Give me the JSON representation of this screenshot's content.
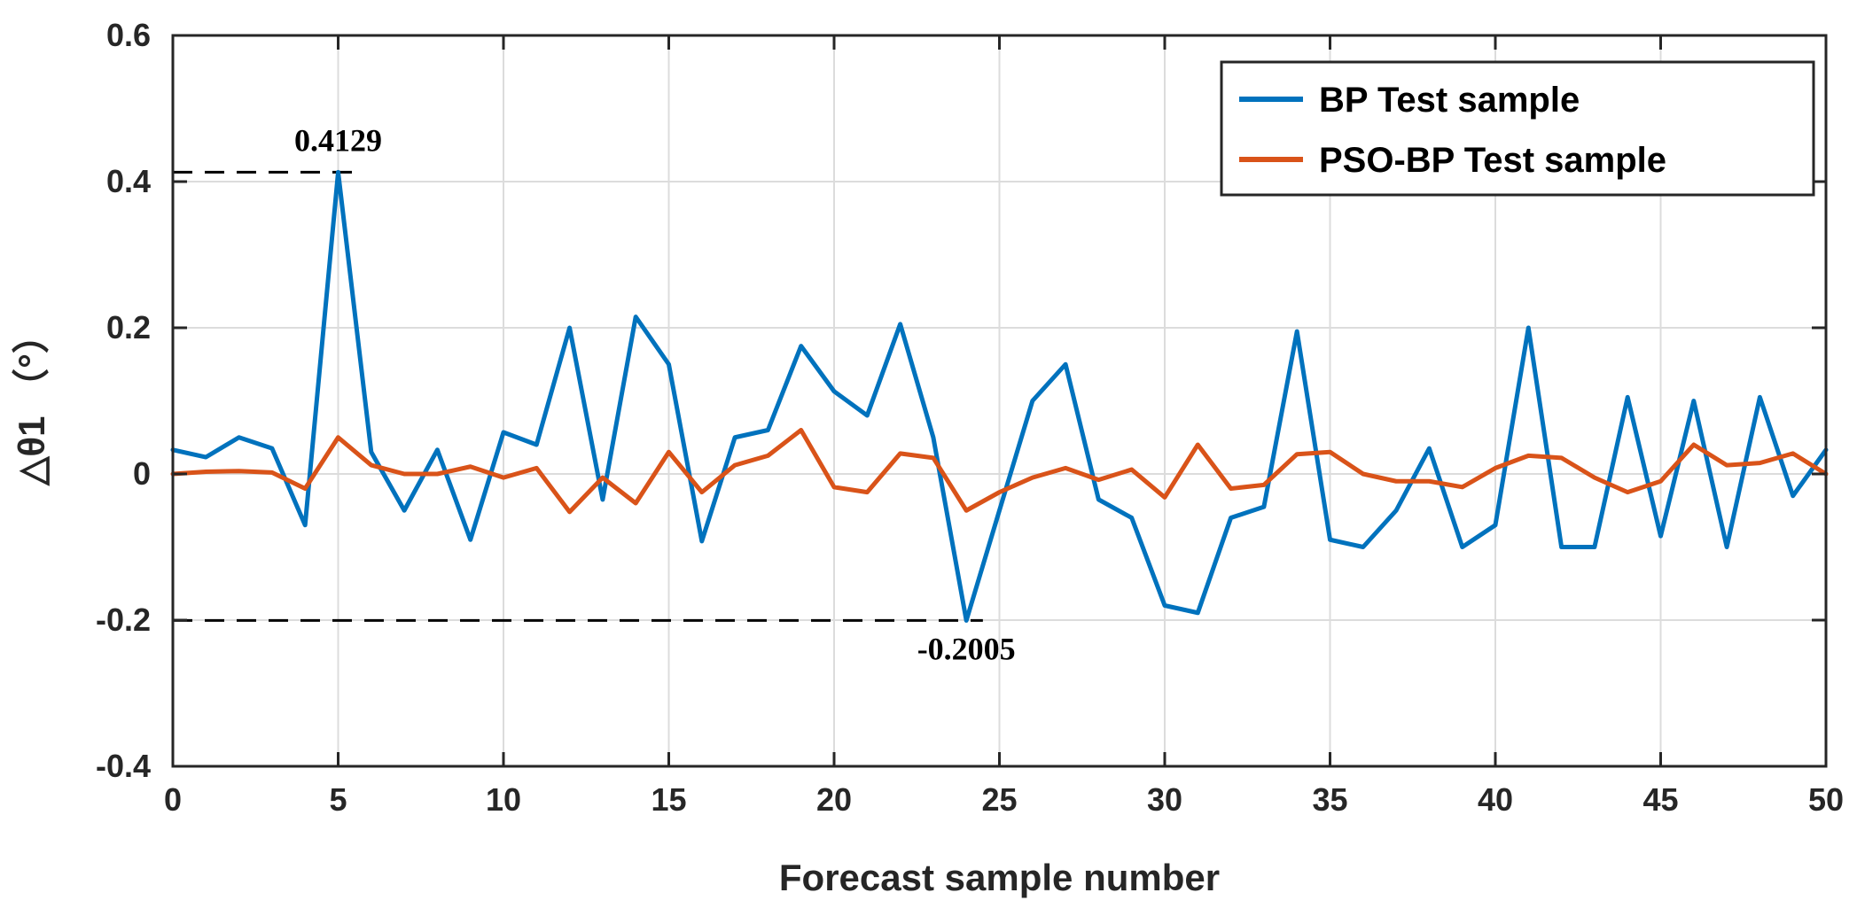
{
  "chart_data": {
    "type": "line",
    "title": "",
    "xlabel": "Forecast sample number",
    "ylabel": "△θ1 （°）",
    "xlim": [
      0,
      50
    ],
    "ylim": [
      -0.4,
      0.6
    ],
    "xticks": [
      0,
      5,
      10,
      15,
      20,
      25,
      30,
      35,
      40,
      45,
      50
    ],
    "yticks": [
      -0.4,
      -0.2,
      0,
      0.2,
      0.4,
      0.6
    ],
    "xtick_labels": [
      "0",
      "5",
      "10",
      "15",
      "20",
      "25",
      "30",
      "35",
      "40",
      "45",
      "50"
    ],
    "ytick_labels": [
      "-0.4",
      "-0.2",
      "0",
      "0.2",
      "0.4",
      "0.6"
    ],
    "grid": true,
    "legend_position": "top-right",
    "x": [
      0,
      1,
      2,
      3,
      4,
      5,
      6,
      7,
      8,
      9,
      10,
      11,
      12,
      13,
      14,
      15,
      16,
      17,
      18,
      19,
      20,
      21,
      22,
      23,
      24,
      25,
      26,
      27,
      28,
      29,
      30,
      31,
      32,
      33,
      34,
      35,
      36,
      37,
      38,
      39,
      40,
      41,
      42,
      43,
      44,
      45,
      46,
      47,
      48,
      49,
      50
    ],
    "series": [
      {
        "name": "BP Test sample",
        "color": "#0072BD",
        "values": [
          0.033,
          0.023,
          0.05,
          0.035,
          -0.07,
          0.4129,
          0.03,
          -0.05,
          0.033,
          -0.09,
          0.057,
          0.04,
          0.2,
          -0.035,
          0.215,
          0.15,
          -0.092,
          0.05,
          0.06,
          0.175,
          0.113,
          0.08,
          0.205,
          0.05,
          -0.2005,
          -0.05,
          0.1,
          0.15,
          -0.035,
          -0.06,
          -0.18,
          -0.19,
          -0.06,
          -0.045,
          0.195,
          -0.09,
          -0.1,
          -0.05,
          0.035,
          -0.1,
          -0.07,
          0.2,
          -0.1,
          -0.1,
          0.105,
          -0.085,
          0.1,
          -0.1,
          0.105,
          -0.03,
          0.033
        ]
      },
      {
        "name": "PSO-BP Test sample",
        "color": "#D95319",
        "values": [
          0.0,
          0.003,
          0.004,
          0.002,
          -0.02,
          0.05,
          0.012,
          0.0,
          0.0,
          0.01,
          -0.005,
          0.008,
          -0.052,
          -0.005,
          -0.04,
          0.03,
          -0.025,
          0.012,
          0.025,
          0.06,
          -0.018,
          -0.025,
          0.028,
          0.022,
          -0.05,
          -0.025,
          -0.005,
          0.008,
          -0.008,
          0.006,
          -0.032,
          0.04,
          -0.02,
          -0.015,
          0.027,
          0.03,
          0.0,
          -0.01,
          -0.01,
          -0.018,
          0.008,
          0.025,
          0.022,
          -0.005,
          -0.025,
          -0.01,
          0.04,
          0.012,
          0.015,
          0.028,
          0.0
        ]
      }
    ],
    "annotations": [
      {
        "text": "0.4129",
        "x": 5,
        "y": 0.4129,
        "ref_x_start": 0,
        "ref_x_end": 5.5,
        "placement": "above"
      },
      {
        "text": "-0.2005",
        "x": 24,
        "y": -0.2005,
        "ref_x_start": 0,
        "ref_x_end": 24.5,
        "placement": "below"
      }
    ]
  }
}
